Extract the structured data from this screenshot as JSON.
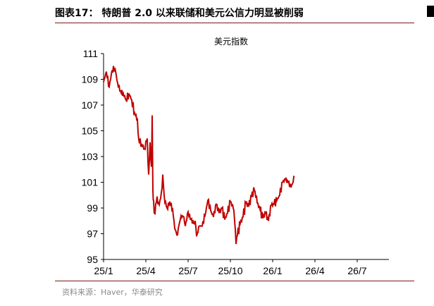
{
  "figure": {
    "label": "图表17：",
    "title": "特朗普 2.0 以来联储和美元公信力明显被削弱"
  },
  "source": "资料来源：Haver，华泰研究",
  "colors": {
    "line": "#c00000",
    "rule": "#7a1a1a",
    "axis": "#000000"
  },
  "chart_data": {
    "type": "line",
    "title": "美元指数",
    "xlabel": "",
    "ylabel": "",
    "ylim": [
      95,
      111
    ],
    "yticks": [
      95,
      97,
      99,
      101,
      103,
      105,
      107,
      109,
      111
    ],
    "x_ticks": [
      "25/1",
      "25/4",
      "25/7",
      "25/10",
      "26/1",
      "26/4",
      "26/7"
    ],
    "grid": false,
    "legend": "none",
    "series": [
      {
        "values": [
          [
            0.0,
            108.8
          ],
          [
            0.2,
            109.6
          ],
          [
            0.4,
            108.4
          ],
          [
            0.6,
            109.7
          ],
          [
            0.8,
            109.9
          ],
          [
            1.0,
            108.7
          ],
          [
            1.2,
            108.1
          ],
          [
            1.4,
            107.9
          ],
          [
            1.6,
            107.4
          ],
          [
            1.8,
            107.9
          ],
          [
            2.0,
            107.4
          ],
          [
            2.2,
            106.4
          ],
          [
            2.4,
            105.9
          ],
          [
            2.5,
            104.3
          ],
          [
            2.7,
            104.0
          ],
          [
            2.9,
            103.6
          ],
          [
            3.0,
            104.2
          ],
          [
            3.1,
            104.4
          ],
          [
            3.2,
            101.6
          ],
          [
            3.3,
            104.1
          ],
          [
            3.4,
            102.2
          ],
          [
            3.45,
            106.2
          ],
          [
            3.5,
            100.4
          ],
          [
            3.55,
            99.6
          ],
          [
            3.6,
            98.6
          ],
          [
            3.7,
            99.3
          ],
          [
            3.8,
            99.9
          ],
          [
            3.9,
            99.4
          ],
          [
            4.0,
            99.6
          ],
          [
            4.1,
            100.2
          ],
          [
            4.2,
            101.6
          ],
          [
            4.3,
            100.0
          ],
          [
            4.4,
            99.5
          ],
          [
            4.5,
            99.0
          ],
          [
            4.7,
            99.5
          ],
          [
            4.9,
            98.9
          ],
          [
            5.0,
            98.0
          ],
          [
            5.1,
            97.3
          ],
          [
            5.2,
            96.9
          ],
          [
            5.3,
            97.4
          ],
          [
            5.5,
            98.4
          ],
          [
            5.7,
            98.3
          ],
          [
            5.8,
            97.6
          ],
          [
            6.0,
            98.7
          ],
          [
            6.2,
            98.1
          ],
          [
            6.4,
            97.8
          ],
          [
            6.5,
            98.0
          ],
          [
            6.6,
            96.8
          ],
          [
            6.8,
            97.6
          ],
          [
            7.0,
            97.6
          ],
          [
            7.2,
            98.4
          ],
          [
            7.4,
            99.6
          ],
          [
            7.6,
            98.8
          ],
          [
            7.8,
            98.3
          ],
          [
            8.0,
            99.3
          ],
          [
            8.2,
            98.6
          ],
          [
            8.4,
            99.0
          ],
          [
            8.6,
            98.1
          ],
          [
            8.8,
            98.6
          ],
          [
            9.0,
            99.5
          ],
          [
            9.2,
            99.0
          ],
          [
            9.3,
            98.0
          ],
          [
            9.4,
            96.2
          ],
          [
            9.5,
            96.9
          ],
          [
            9.7,
            97.8
          ],
          [
            9.9,
            98.3
          ],
          [
            10.1,
            99.4
          ],
          [
            10.3,
            99.1
          ],
          [
            10.5,
            99.9
          ],
          [
            10.7,
            100.4
          ],
          [
            10.8,
            99.8
          ],
          [
            10.9,
            99.4
          ],
          [
            11.1,
            98.9
          ],
          [
            11.3,
            98.2
          ],
          [
            11.5,
            98.6
          ],
          [
            11.7,
            98.0
          ],
          [
            11.9,
            99.2
          ],
          [
            12.1,
            99.3
          ],
          [
            12.3,
            99.6
          ],
          [
            12.5,
            100.0
          ],
          [
            12.7,
            101.0
          ],
          [
            12.9,
            101.2
          ],
          [
            13.1,
            101.0
          ],
          [
            13.3,
            100.6
          ],
          [
            13.45,
            101.0
          ],
          [
            13.55,
            101.4
          ]
        ]
      }
    ]
  }
}
